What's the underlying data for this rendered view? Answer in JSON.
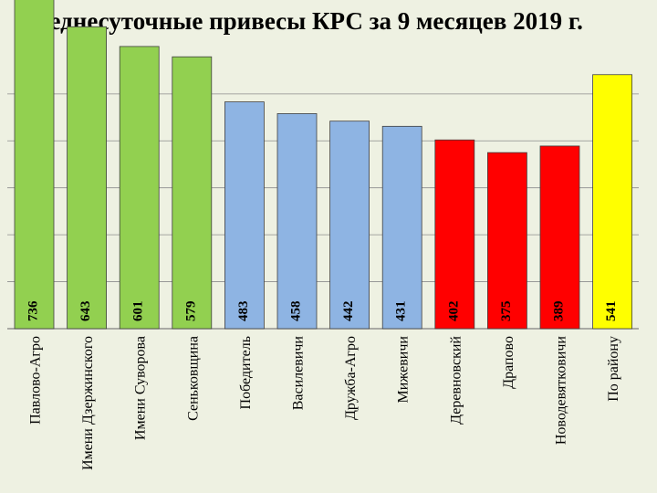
{
  "chart_data": {
    "type": "bar",
    "title": "Среднесуточные привесы КРС за 9 месяцев 2019 г.",
    "xlabel": "",
    "ylabel": "",
    "ylim": [
      0,
      800
    ],
    "grid": true,
    "categories": [
      "Павлово-Агро",
      "Имени Дзержинского",
      "Имени Суворова",
      "Сеньковщина",
      "Победитель",
      "Василевичи",
      "Дружба-Агро",
      "Мижевичи",
      "Деревновский",
      "Драпово",
      "Новодевятковичи",
      "По району"
    ],
    "values": [
      736,
      643,
      601,
      579,
      483,
      458,
      442,
      431,
      402,
      375,
      389,
      541
    ],
    "colors": [
      "#92d050",
      "#92d050",
      "#92d050",
      "#92d050",
      "#8eb4e3",
      "#8eb4e3",
      "#8eb4e3",
      "#8eb4e3",
      "#ff0000",
      "#ff0000",
      "#ff0000",
      "#ffff00"
    ]
  }
}
